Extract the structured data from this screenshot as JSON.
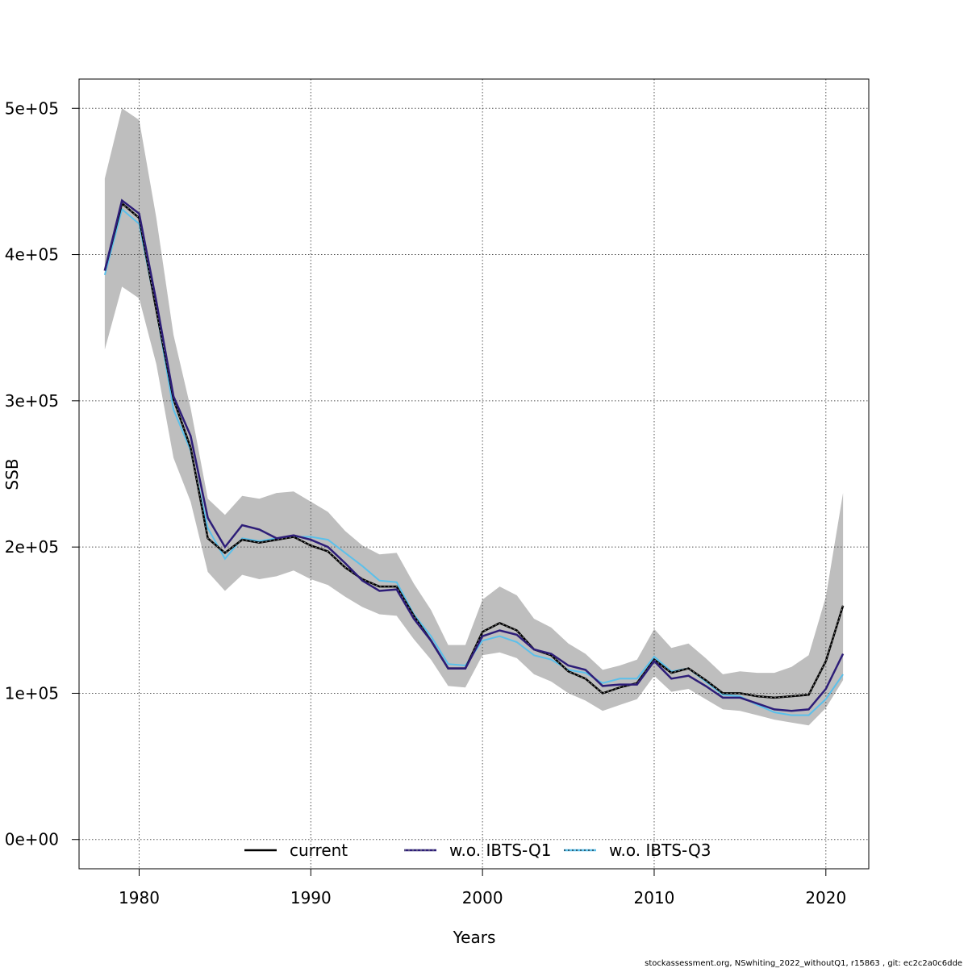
{
  "chart_data": {
    "type": "line",
    "title": "",
    "xlabel": "Years",
    "ylabel": "SSB",
    "xlim": [
      1976.5,
      2022.5
    ],
    "ylim": [
      -20000,
      520000
    ],
    "x_ticks": [
      1980,
      1990,
      2000,
      2010,
      2020
    ],
    "x_tick_labels": [
      "1980",
      "1990",
      "2000",
      "2010",
      "2020"
    ],
    "y_ticks": [
      0,
      100000,
      200000,
      300000,
      400000,
      500000
    ],
    "y_tick_labels": [
      "0e+00",
      "1e+05",
      "2e+05",
      "3e+05",
      "4e+05",
      "5e+05"
    ],
    "grid": true,
    "legend_position": "bottom",
    "x": [
      1978,
      1979,
      1980,
      1981,
      1982,
      1983,
      1984,
      1985,
      1986,
      1987,
      1988,
      1989,
      1990,
      1991,
      1992,
      1993,
      1994,
      1995,
      1996,
      1997,
      1998,
      1999,
      2000,
      2001,
      2002,
      2003,
      2004,
      2005,
      2006,
      2007,
      2008,
      2009,
      2010,
      2011,
      2012,
      2013,
      2014,
      2015,
      2016,
      2017,
      2018,
      2019,
      2020,
      2021
    ],
    "confidence_band": {
      "color": "#bebebe",
      "upper": [
        452000,
        500000,
        492000,
        425000,
        345000,
        295000,
        233000,
        222000,
        235000,
        233000,
        237000,
        238000,
        231000,
        224000,
        211000,
        201000,
        195000,
        196000,
        175000,
        157000,
        133000,
        133000,
        164000,
        173000,
        167000,
        151000,
        145000,
        134000,
        127000,
        116000,
        119000,
        123000,
        144000,
        131000,
        134000,
        124000,
        113000,
        115000,
        114000,
        114000,
        118000,
        126000,
        166000,
        237000
      ],
      "lower": [
        335000,
        378000,
        370000,
        325000,
        261000,
        231000,
        183000,
        170000,
        181000,
        178000,
        180000,
        184000,
        178000,
        174000,
        166000,
        159000,
        154000,
        153000,
        137000,
        123000,
        105000,
        104000,
        126000,
        128000,
        124000,
        113000,
        108000,
        100000,
        95000,
        88000,
        92000,
        96000,
        112000,
        101000,
        103000,
        96000,
        89000,
        88000,
        85000,
        82000,
        80000,
        78000,
        90000,
        109000
      ]
    },
    "series": [
      {
        "name": "current",
        "color": "#000000",
        "values": [
          389000,
          435000,
          425000,
          362000,
          301000,
          268000,
          206000,
          196000,
          205000,
          203000,
          205000,
          207000,
          201000,
          197000,
          186000,
          178000,
          173000,
          173000,
          153000,
          136000,
          117000,
          117000,
          142000,
          148000,
          143000,
          130000,
          126000,
          115000,
          110000,
          100000,
          104000,
          107000,
          123000,
          114000,
          117000,
          109000,
          100000,
          100000,
          98000,
          97000,
          98000,
          99000,
          122000,
          160000
        ]
      },
      {
        "name": "w.o. IBTS-Q1",
        "color": "#2d1d78",
        "values": [
          389000,
          437000,
          428000,
          368000,
          303000,
          276000,
          220000,
          200000,
          215000,
          212000,
          206000,
          208000,
          205000,
          200000,
          189000,
          177000,
          170000,
          171000,
          151000,
          136000,
          117000,
          117000,
          139000,
          143000,
          140000,
          130000,
          127000,
          119000,
          116000,
          105000,
          106000,
          106000,
          122000,
          110000,
          112000,
          105000,
          97000,
          97000,
          93000,
          89000,
          88000,
          89000,
          103000,
          127000
        ]
      },
      {
        "name": "w.o. IBTS-Q3",
        "color": "#5bc0eb",
        "values": [
          386000,
          431000,
          421000,
          362000,
          294000,
          266000,
          213000,
          192000,
          206000,
          204000,
          206000,
          207000,
          207000,
          205000,
          196000,
          187000,
          177000,
          176000,
          154000,
          139000,
          120000,
          119000,
          136000,
          139000,
          135000,
          126000,
          123000,
          116000,
          114000,
          107000,
          110000,
          110000,
          125000,
          115000,
          117000,
          108000,
          99000,
          98000,
          92000,
          87000,
          85000,
          85000,
          96000,
          113000
        ]
      }
    ]
  },
  "footer_text": "stockassessment.org, NSwhiting_2022_withoutQ1, r15863 , git: ec2c2a0c6dde"
}
